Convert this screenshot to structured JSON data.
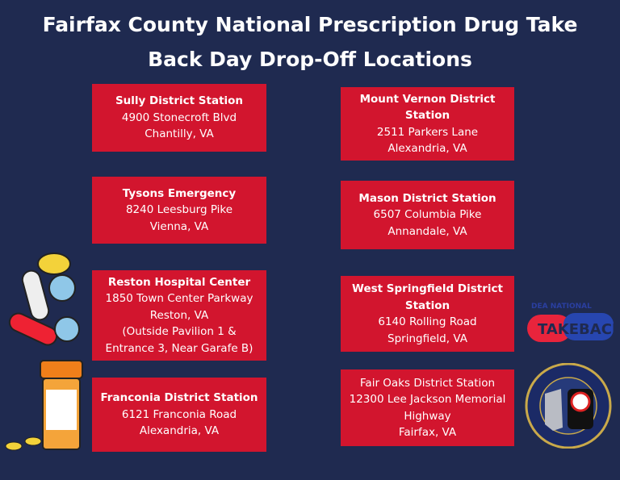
{
  "title": {
    "line1": "Fairfax County National Prescription Drug Take",
    "line2": "Back Day Drop-Off Locations"
  },
  "locations": [
    {
      "name": "Sully District Station",
      "lines": [
        "4900 Stonecroft Blvd",
        "Chantilly, VA"
      ]
    },
    {
      "name": "Tysons Emergency",
      "lines": [
        "8240 Leesburg Pike",
        "Vienna, VA"
      ]
    },
    {
      "name": "Reston Hospital Center",
      "lines": [
        "1850 Town Center Parkway",
        "Reston, VA",
        "(Outside Pavilion 1 &",
        "Entrance 3, Near Garafe B)"
      ]
    },
    {
      "name": "Franconia District Station",
      "lines": [
        "6121 Franconia Road",
        "Alexandria, VA"
      ]
    },
    {
      "name": "Mount Vernon District Station",
      "lines": [
        "2511 Parkers Lane",
        "Alexandria, VA"
      ]
    },
    {
      "name": "Mason District Station",
      "lines": [
        "6507 Columbia Pike",
        "Annandale, VA"
      ]
    },
    {
      "name": "West Springfield District Station",
      "lines": [
        "6140 Rolling Road",
        "Springfield, VA"
      ]
    },
    {
      "name": "Fair Oaks District Station",
      "lines": [
        "12300 Lee Jackson Memorial",
        "Highway",
        "Fairfax, VA"
      ]
    }
  ],
  "logos": {
    "takeback": "DEA National TAKEBACK",
    "seal": "Fairfax County Police Department"
  },
  "colors": {
    "background": "#1f2a50",
    "box": "#d2152e"
  }
}
